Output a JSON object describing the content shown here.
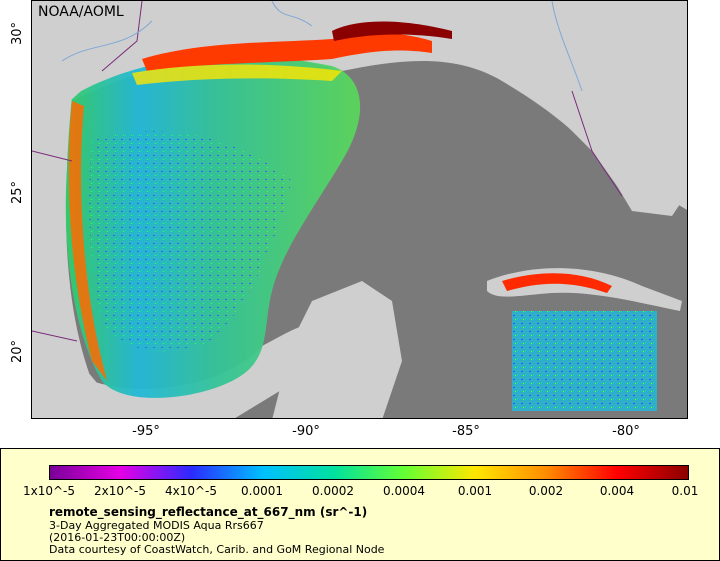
{
  "map": {
    "source_label": "NOAA/AOML",
    "lat_labels": [
      "30°",
      "25°",
      "20°"
    ],
    "lon_labels": [
      "-95°",
      "-90°",
      "-85°",
      "-80°"
    ],
    "colors": {
      "ocean_nodata": "#7a7a7a",
      "land": "#cfcfcf",
      "coast_line": "#7b2c7b",
      "river_line": "#7fa7d6"
    }
  },
  "legend": {
    "colorbar_colors": [
      "#7a0098",
      "#e600e6",
      "#2b2bff",
      "#00bfff",
      "#00e0a0",
      "#66ff33",
      "#ffe600",
      "#ff8c00",
      "#ff0000",
      "#8b0000"
    ],
    "ticks": [
      "1x10^-5",
      "2x10^-5",
      "4x10^-5",
      "0.0001",
      "0.0002",
      "0.0004",
      "0.001",
      "0.002",
      "0.004",
      "0.01"
    ],
    "variable_name": "remote_sensing_reflectance_at_667_nm (sr^-1)",
    "dataset_desc": "3-Day Aggregated MODIS Aqua Rrs667",
    "time_stamp": "(2016-01-23T00:00:00Z)",
    "credit": "Data courtesy of CoastWatch, Carib. and GoM Regional Node"
  }
}
